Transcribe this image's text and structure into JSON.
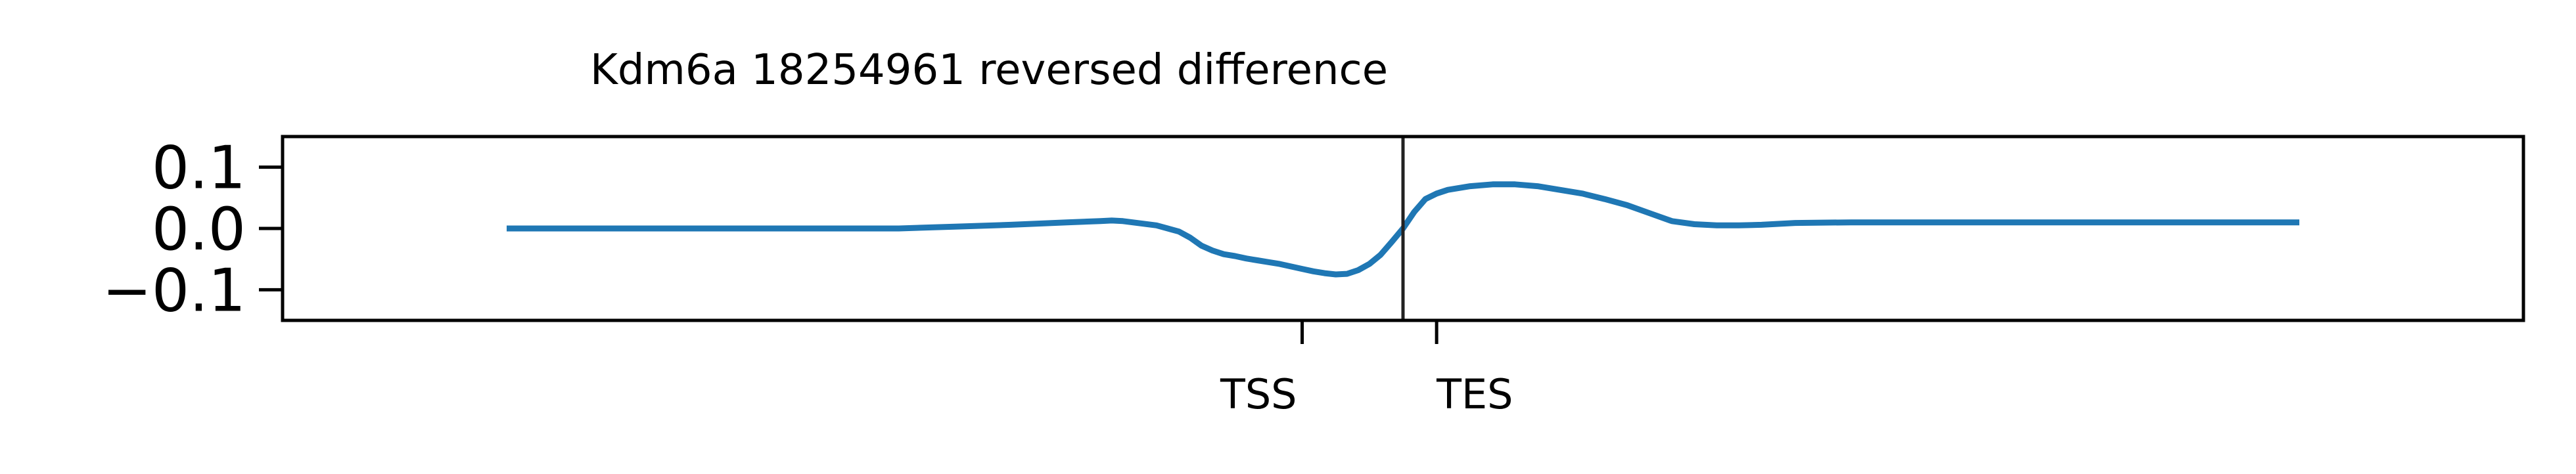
{
  "chart_data": {
    "type": "line",
    "title": "Kdm6a 18254961 reversed difference",
    "xlabel": "",
    "ylabel": "",
    "ylim": [
      -0.15,
      0.15
    ],
    "yticks": [
      {
        "value": 0.1,
        "label": "0.1"
      },
      {
        "value": 0.0,
        "label": "0.0"
      },
      {
        "value": -0.1,
        "label": "−0.1"
      }
    ],
    "xlim": [
      -1.0,
      1.0
    ],
    "xticks": [
      {
        "value": -0.09,
        "label": "TSS"
      },
      {
        "value": 0.03,
        "label": "TES"
      }
    ],
    "vline": {
      "x": 0.0
    },
    "grid": false,
    "series": [
      {
        "color": "#1f77b4",
        "x": [
          -0.8,
          -0.6,
          -0.5,
          -0.45,
          -0.4,
          -0.35,
          -0.3,
          -0.27,
          -0.26,
          -0.25,
          -0.22,
          -0.2,
          -0.19,
          -0.18,
          -0.17,
          -0.16,
          -0.15,
          -0.14,
          -0.13,
          -0.12,
          -0.11,
          -0.1,
          -0.09,
          -0.08,
          -0.07,
          -0.06,
          -0.05,
          -0.04,
          -0.03,
          -0.02,
          -0.01,
          0.0,
          0.01,
          0.02,
          0.03,
          0.04,
          0.06,
          0.08,
          0.1,
          0.12,
          0.14,
          0.16,
          0.18,
          0.2,
          0.22,
          0.24,
          0.26,
          0.28,
          0.3,
          0.32,
          0.35,
          0.4,
          0.45,
          0.5,
          0.55,
          0.6,
          0.7,
          0.8
        ],
        "y": [
          0.0,
          0.0,
          0.0,
          0.0,
          0.003,
          0.006,
          0.01,
          0.012,
          0.013,
          0.012,
          0.005,
          -0.005,
          -0.015,
          -0.028,
          -0.036,
          -0.042,
          -0.045,
          -0.049,
          -0.052,
          -0.055,
          -0.058,
          -0.062,
          -0.066,
          -0.07,
          -0.073,
          -0.075,
          -0.074,
          -0.068,
          -0.058,
          -0.043,
          -0.022,
          0.0,
          0.027,
          0.048,
          0.057,
          0.063,
          0.069,
          0.072,
          0.072,
          0.069,
          0.063,
          0.057,
          0.048,
          0.038,
          0.025,
          0.012,
          0.007,
          0.005,
          0.005,
          0.006,
          0.009,
          0.01,
          0.01,
          0.01,
          0.01,
          0.01,
          0.01,
          0.01
        ]
      }
    ]
  }
}
